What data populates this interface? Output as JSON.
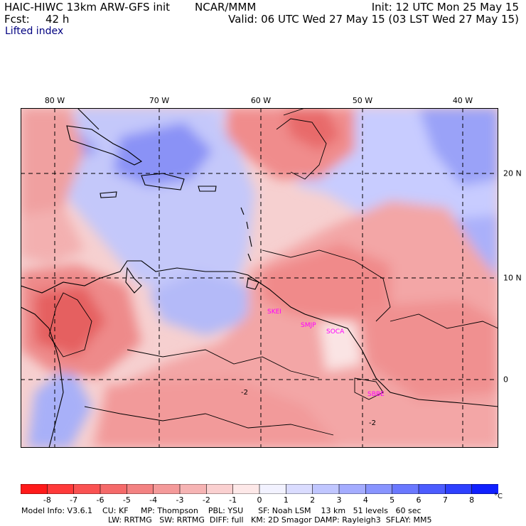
{
  "header": {
    "model": "HAIC-HIWC 13km ARW-GFS init",
    "org": "NCAR/MMM",
    "init": "Init: 12 UTC Mon 25 May 15",
    "fcst_label": "Fcst:",
    "fcst_value": "42 h",
    "valid": "Valid: 06 UTC Wed 27 May 15 (03 LST Wed 27 May 15)",
    "variable": "Lifted index"
  },
  "axes": {
    "lon_labels": [
      "80 W",
      "70 W",
      "60 W",
      "50 W",
      "40 W"
    ],
    "lat_labels": [
      "20 N",
      "10 N",
      "0"
    ]
  },
  "stations": [
    "SKEI",
    "SMJP",
    "SOCA",
    "SBBE"
  ],
  "contour_labels": [
    "-2",
    "-2"
  ],
  "colorbar": {
    "ticks": [
      "-8",
      "-7",
      "-6",
      "-5",
      "-4",
      "-3",
      "-2",
      "-1",
      "0",
      "1",
      "2",
      "3",
      "4",
      "5",
      "6",
      "7",
      "8"
    ],
    "unit": "°C",
    "colors": [
      "#ff1a1a",
      "#ff3a3a",
      "#fa5252",
      "#f56a6a",
      "#f38282",
      "#f49a9a",
      "#f6b4b4",
      "#fad0d0",
      "#fde8e8",
      "#f2f2ff",
      "#dadcff",
      "#c0c6ff",
      "#a4acff",
      "#8894ff",
      "#6a78ff",
      "#4c5cff",
      "#2e40ff",
      "#1020ff"
    ]
  },
  "footer": {
    "line1": "Model Info: V3.6.1    CU: KF     MP: Thompson    PBL: YSU      SF: Noah LSM    13 km   51 levels   60 sec",
    "line2": "LW: RRTMG   SW: RRTMG  DIFF: full   KM: 2D Smagor DAMP: Rayleigh3  SFLAY: MM5"
  },
  "palette": {
    "coast": "#000000",
    "grid": "#000000",
    "station": "#ff00ff"
  }
}
